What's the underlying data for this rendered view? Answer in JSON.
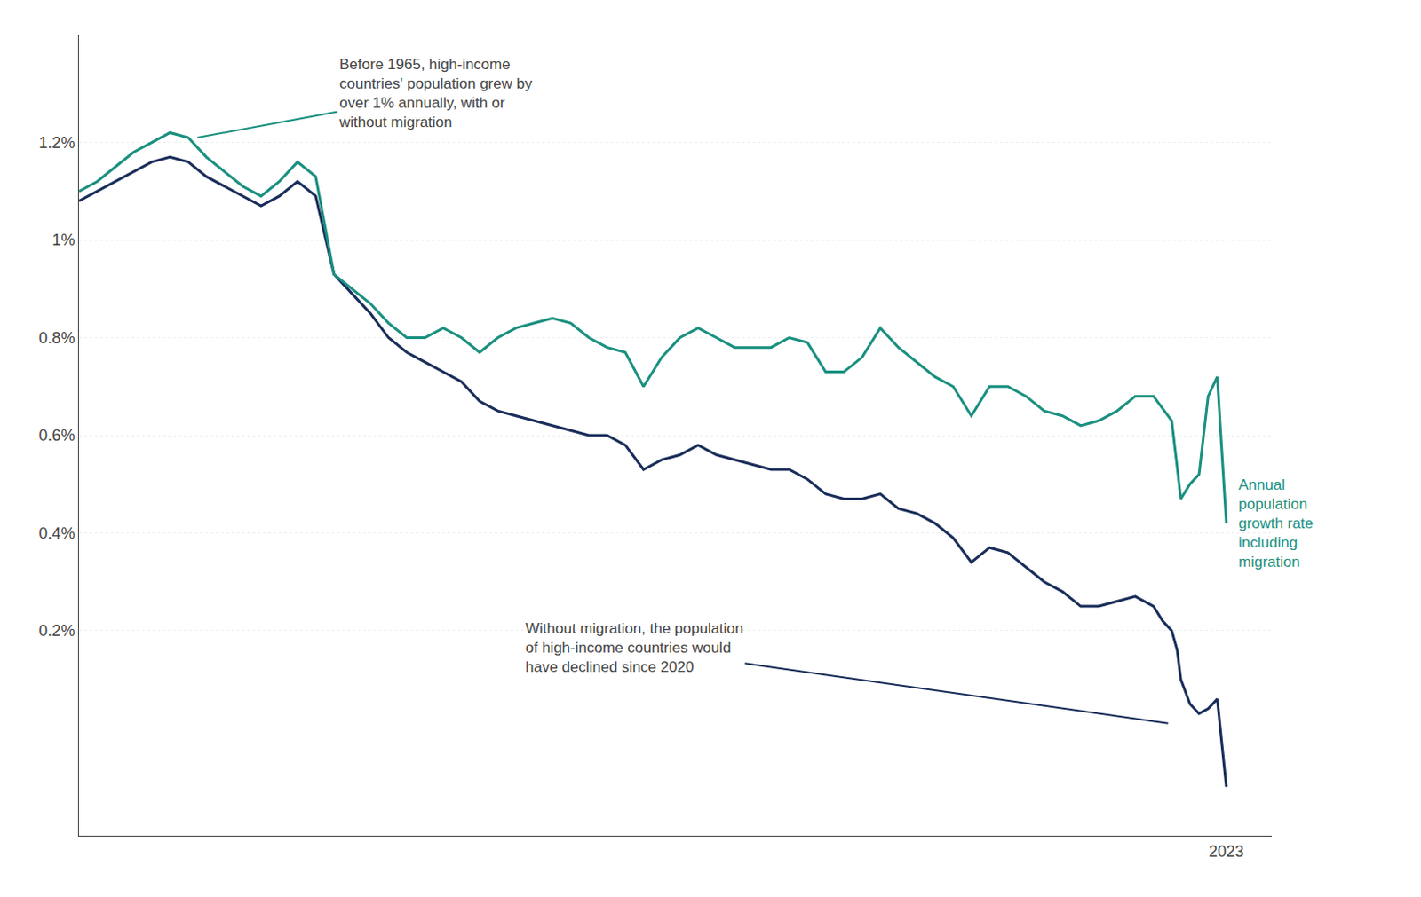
{
  "chart_data": {
    "type": "line",
    "xlim": [
      1960,
      2025.5
    ],
    "ylim": [
      -0.22,
      1.42
    ],
    "yticks": [
      {
        "value": 0.2,
        "label": "0.2%"
      },
      {
        "value": 0.4,
        "label": "0.4%"
      },
      {
        "value": 0.6,
        "label": "0.6%"
      },
      {
        "value": 0.8,
        "label": "0.8%"
      },
      {
        "value": 1.0,
        "label": "1%"
      },
      {
        "value": 1.2,
        "label": "1.2%"
      }
    ],
    "grid": true,
    "tick_labels": "y",
    "series": [
      {
        "color": "#1a2e5a",
        "x": [
          1960,
          1961,
          1962,
          1963,
          1964,
          1965,
          1966,
          1967,
          1968,
          1969,
          1970,
          1971,
          1972,
          1973,
          1974,
          1975,
          1976,
          1977,
          1978,
          1979,
          1980,
          1981,
          1982,
          1983,
          1984,
          1985,
          1986,
          1987,
          1988,
          1989,
          1990,
          1991,
          1992,
          1993,
          1994,
          1995,
          1996,
          1997,
          1998,
          1999,
          2000,
          2001,
          2002,
          2003,
          2004,
          2005,
          2006,
          2007,
          2008,
          2009,
          2010,
          2011,
          2012,
          2013,
          2014,
          2015,
          2016,
          2017,
          2018,
          2019,
          2019.5,
          2020,
          2020.3,
          2020.5,
          2021,
          2021.5,
          2022,
          2022.5,
          2023
        ],
        "values": [
          1.08,
          1.1,
          1.12,
          1.14,
          1.16,
          1.17,
          1.16,
          1.13,
          1.11,
          1.09,
          1.07,
          1.09,
          1.12,
          1.09,
          0.93,
          0.89,
          0.85,
          0.8,
          0.77,
          0.75,
          0.73,
          0.71,
          0.67,
          0.65,
          0.64,
          0.63,
          0.62,
          0.61,
          0.6,
          0.6,
          0.58,
          0.53,
          0.55,
          0.56,
          0.58,
          0.56,
          0.55,
          0.54,
          0.53,
          0.53,
          0.51,
          0.48,
          0.47,
          0.47,
          0.48,
          0.45,
          0.44,
          0.42,
          0.39,
          0.34,
          0.37,
          0.36,
          0.33,
          0.3,
          0.28,
          0.25,
          0.25,
          0.26,
          0.27,
          0.25,
          0.22,
          0.2,
          0.16,
          0.1,
          0.05,
          0.03,
          0.04,
          0.06,
          -0.12
        ]
      },
      {
        "color": "#1a9080",
        "x": [
          1960,
          1961,
          1962,
          1963,
          1964,
          1965,
          1966,
          1967,
          1968,
          1969,
          1970,
          1971,
          1972,
          1973,
          1974,
          1975,
          1976,
          1977,
          1978,
          1979,
          1980,
          1981,
          1982,
          1983,
          1984,
          1985,
          1986,
          1987,
          1988,
          1989,
          1990,
          1991,
          1992,
          1993,
          1994,
          1995,
          1996,
          1997,
          1998,
          1999,
          2000,
          2001,
          2002,
          2003,
          2004,
          2005,
          2006,
          2007,
          2008,
          2009,
          2010,
          2011,
          2012,
          2013,
          2014,
          2015,
          2016,
          2017,
          2018,
          2019,
          2020,
          2020.5,
          2021,
          2021.5,
          2022,
          2022.5,
          2023
        ],
        "values": [
          1.1,
          1.12,
          1.15,
          1.18,
          1.2,
          1.22,
          1.21,
          1.17,
          1.14,
          1.11,
          1.09,
          1.12,
          1.16,
          1.13,
          0.93,
          0.9,
          0.87,
          0.83,
          0.8,
          0.8,
          0.82,
          0.8,
          0.77,
          0.8,
          0.82,
          0.83,
          0.84,
          0.83,
          0.8,
          0.78,
          0.77,
          0.7,
          0.76,
          0.8,
          0.82,
          0.8,
          0.78,
          0.78,
          0.78,
          0.8,
          0.79,
          0.73,
          0.73,
          0.76,
          0.82,
          0.78,
          0.75,
          0.72,
          0.7,
          0.64,
          0.7,
          0.7,
          0.68,
          0.65,
          0.64,
          0.62,
          0.63,
          0.65,
          0.68,
          0.68,
          0.63,
          0.47,
          0.5,
          0.52,
          0.68,
          0.72,
          0.42
        ]
      }
    ],
    "annotations": [
      {
        "text": "Before 1965, high-income\ncountries' population grew by\nover 1% annually, with or\nwithout migration",
        "x": 1966.5,
        "y": 1.21,
        "color": "#1a9080"
      },
      {
        "text": "Without migration, the population\nof high-income countries would\nhave declined since 2020",
        "x": 2019.8,
        "y": 0.01,
        "color": "#1a2e5a"
      },
      {
        "text": "Annual\npopulation\ngrowth rate\nincluding\nmigration",
        "color": "#1a9080"
      },
      {
        "text": "2023"
      }
    ]
  }
}
